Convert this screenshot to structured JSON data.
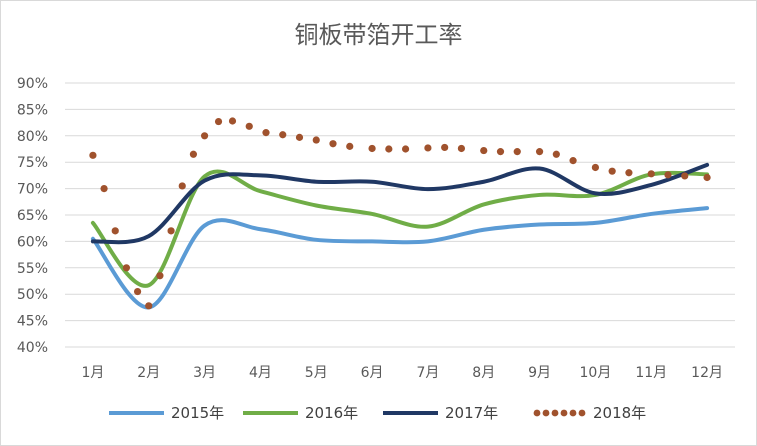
{
  "chart_data": {
    "type": "line",
    "title": "铜板带箔开工率",
    "xlabel": "",
    "ylabel": "",
    "categories": [
      "1月",
      "2月",
      "3月",
      "4月",
      "5月",
      "6月",
      "7月",
      "8月",
      "9月",
      "10月",
      "11月",
      "12月"
    ],
    "ylim": [
      40,
      90
    ],
    "y_ticks": [
      "40%",
      "45%",
      "50%",
      "55%",
      "60%",
      "65%",
      "70%",
      "75%",
      "80%",
      "85%",
      "90%"
    ],
    "grid": true,
    "legend_position": "bottom",
    "series": [
      {
        "name": "2015年",
        "color": "#5b9bd5",
        "style": "solid",
        "x": [
          1,
          2,
          3,
          4,
          5,
          6,
          7,
          8,
          9,
          10,
          11,
          12
        ],
        "values": [
          60.5,
          47.5,
          63,
          62.3,
          60.3,
          60,
          60,
          62.2,
          63.2,
          63.5,
          65.2,
          66.3
        ]
      },
      {
        "name": "2016年",
        "color": "#70ad47",
        "style": "solid",
        "x": [
          1,
          2,
          3,
          4,
          5,
          6,
          7,
          8,
          9,
          10,
          11,
          12
        ],
        "values": [
          63.5,
          51.7,
          72.3,
          69.5,
          66.8,
          65.2,
          62.8,
          67,
          68.8,
          68.8,
          72.7,
          72.7
        ]
      },
      {
        "name": "2017年",
        "color": "#203864",
        "style": "solid",
        "x": [
          1,
          2,
          3,
          4,
          5,
          6,
          7,
          8,
          9,
          10,
          11,
          12
        ],
        "values": [
          60,
          61,
          71.5,
          72.5,
          71.3,
          71.3,
          69.9,
          71.3,
          73.8,
          69.1,
          70.7,
          74.5
        ]
      },
      {
        "name": "2018年",
        "color": "#a0522d",
        "style": "dotted",
        "x": [
          1,
          1.2,
          1.4,
          1.6,
          1.8,
          2,
          2.2,
          2.4,
          2.6,
          2.8,
          3,
          3.25,
          3.5,
          3.8,
          4.1,
          4.4,
          4.7,
          5,
          5.3,
          5.6,
          6,
          6.3,
          6.6,
          7,
          7.3,
          7.6,
          8,
          8.3,
          8.6,
          9,
          9.3,
          9.6,
          10,
          10.3,
          10.6,
          11,
          11.3,
          11.6,
          12
        ],
        "values": [
          76.3,
          70,
          62,
          55,
          50.5,
          47.8,
          53.5,
          62,
          70.5,
          76.5,
          80,
          82.7,
          82.8,
          81.8,
          80.6,
          80.2,
          79.7,
          79.2,
          78.5,
          78,
          77.6,
          77.5,
          77.5,
          77.7,
          77.8,
          77.6,
          77.2,
          77,
          77,
          77,
          76.5,
          75.3,
          74,
          73.3,
          73,
          72.8,
          72.6,
          72.4,
          72.1
        ]
      }
    ]
  }
}
